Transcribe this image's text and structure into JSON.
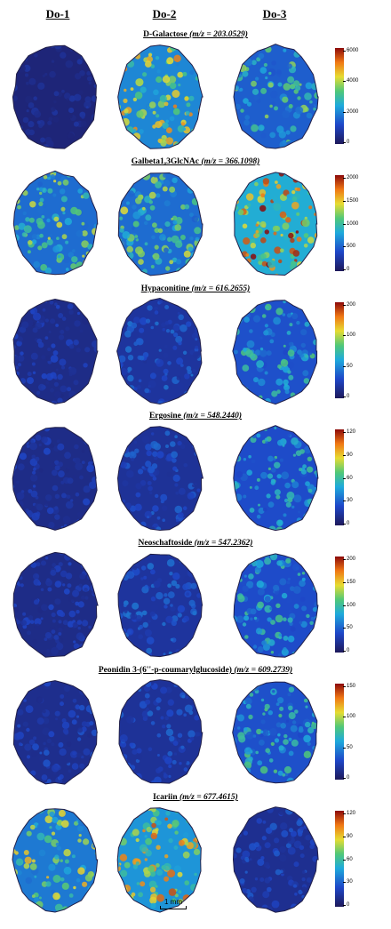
{
  "columns": [
    "Do-1",
    "Do-2",
    "Do-3"
  ],
  "panels": [
    {
      "name": "D-Galactose",
      "mz": "(m/z = 203.0529)",
      "ticks": [
        "6000",
        "4000",
        "2000",
        "0"
      ],
      "intensity": [
        0.1,
        0.6,
        0.45
      ]
    },
    {
      "name": "Galbeta1,3GlcNAc",
      "mz": "(m/z = 366.1098)",
      "ticks": [
        "2000",
        "1500",
        "1000",
        "500",
        "0"
      ],
      "intensity": [
        0.5,
        0.5,
        0.75
      ]
    },
    {
      "name": "Hypaconitine",
      "mz": "(m/z = 616.2655)",
      "ticks": [
        "200",
        "100",
        "50",
        "0"
      ],
      "intensity": [
        0.15,
        0.22,
        0.4
      ]
    },
    {
      "name": "Ergosine",
      "mz": "(m/z = 548.2440)",
      "ticks": [
        "120",
        "90",
        "60",
        "30",
        "0"
      ],
      "intensity": [
        0.15,
        0.2,
        0.38
      ]
    },
    {
      "name": "Neoschaftoside",
      "mz": "(m/z = 547.2362)",
      "ticks": [
        "200",
        "150",
        "100",
        "50",
        "0"
      ],
      "intensity": [
        0.15,
        0.22,
        0.38
      ]
    },
    {
      "name": "Peonidin 3-(6''-p-coumarylglucoside)",
      "mz": "(m/z = 609.2739)",
      "ticks": [
        "150",
        "100",
        "50",
        "0"
      ],
      "intensity": [
        0.17,
        0.2,
        0.4
      ]
    },
    {
      "name": "Icariin",
      "mz": "(m/z = 677.4615)",
      "ticks": [
        "120",
        "90",
        "60",
        "30",
        "0"
      ],
      "intensity": [
        0.55,
        0.65,
        0.18
      ]
    }
  ],
  "scale_bar_label": "1 mm"
}
